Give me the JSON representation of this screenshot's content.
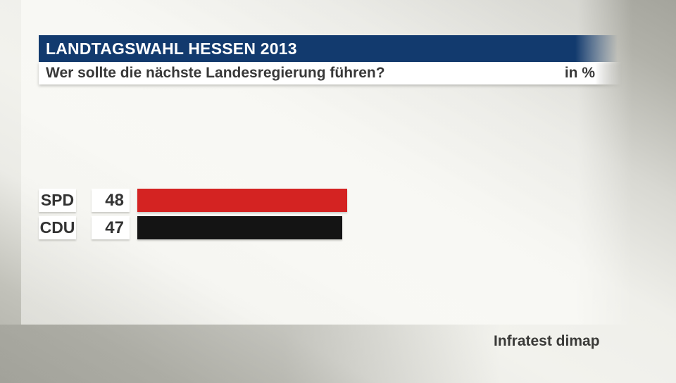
{
  "header": {
    "kicker": "LANDTAGSWAHL HESSEN 2013",
    "question": "Wer sollte die nächste Landesregierung führen?",
    "unit_label": "in %"
  },
  "chart_data": {
    "type": "bar",
    "orientation": "horizontal",
    "title": "Wer sollte die nächste Landesregierung führen?",
    "unit": "%",
    "categories": [
      "SPD",
      "CDU"
    ],
    "values": [
      48,
      47
    ],
    "bar_colors": [
      "#d42322",
      "#141414"
    ],
    "xlim": [
      0,
      100
    ],
    "grid": false,
    "legend": "none",
    "value_label_position": "boxes-left-of-bars"
  },
  "footer": {
    "source": "Infratest dimap"
  },
  "theme": {
    "header_bg": "#123a6e",
    "header_text": "#ffffff",
    "question_text": "#383838",
    "box_bg": "#ffffff",
    "box_text": "#333333"
  }
}
